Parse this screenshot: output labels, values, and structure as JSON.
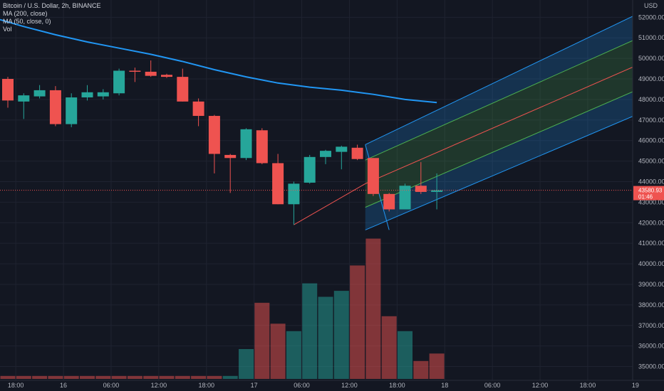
{
  "legend": {
    "symbol": "Bitcoin / U.S. Dollar, 2h, BINANCE",
    "ma200": "MA (200, close)",
    "ma50": "MA (50, close, 0)",
    "vol": "Vol"
  },
  "colors": {
    "background": "#131722",
    "up": "#26a69a",
    "down": "#ef5350",
    "ma": "#2196f3",
    "grid": "#1f2330",
    "axis_text": "#b2b5be",
    "channel_outer": "#2196f3",
    "channel_inner": "#4caf50",
    "channel_mid": "#ef5350",
    "price_line": "#ef5350"
  },
  "chart_data": {
    "type": "candlestick",
    "title": "Bitcoin / U.S. Dollar, 2h, BINANCE",
    "currency_label": "USD",
    "y_ticks": [
      35000,
      36000,
      37000,
      38000,
      39000,
      40000,
      41000,
      42000,
      43000,
      44000,
      45000,
      46000,
      47000,
      48000,
      49000,
      50000,
      51000,
      52000
    ],
    "y_tick_labels": [
      "35000.00",
      "36000.00",
      "37000.00",
      "38000.00",
      "39000.00",
      "40000.00",
      "41000.00",
      "42000.00",
      "43000.00",
      "44000.00",
      "45000.00",
      "46000.00",
      "47000.00",
      "48000.00",
      "49000.00",
      "50000.00",
      "51000.00",
      "52000.00"
    ],
    "ylim": [
      34500,
      52600
    ],
    "x_tick_labels": [
      "18:00",
      "16",
      "06:00",
      "12:00",
      "18:00",
      "17",
      "06:00",
      "12:00",
      "18:00",
      "18",
      "06:00",
      "12:00",
      "18:00",
      "19"
    ],
    "x_tick_index": [
      0.5,
      3.5,
      6.5,
      9.5,
      12.5,
      15.5,
      18.5,
      21.5,
      24.5,
      27.5,
      30.5,
      33.5,
      36.5,
      39.5
    ],
    "current_price": 43580.93,
    "current_price_label": "43580.93",
    "countdown_label": "01:46",
    "candles": [
      {
        "o": 49000,
        "h": 49100,
        "l": 47600,
        "c": 47950
      },
      {
        "o": 47900,
        "h": 48300,
        "l": 47050,
        "c": 48200
      },
      {
        "o": 48150,
        "h": 48700,
        "l": 48050,
        "c": 48450
      },
      {
        "o": 48450,
        "h": 48650,
        "l": 46700,
        "c": 46800
      },
      {
        "o": 46800,
        "h": 48300,
        "l": 46650,
        "c": 48100
      },
      {
        "o": 48100,
        "h": 48700,
        "l": 47950,
        "c": 48350
      },
      {
        "o": 48150,
        "h": 48500,
        "l": 48000,
        "c": 48350
      },
      {
        "o": 48300,
        "h": 49500,
        "l": 48200,
        "c": 49400
      },
      {
        "o": 49400,
        "h": 49550,
        "l": 48850,
        "c": 49350
      },
      {
        "o": 49350,
        "h": 49900,
        "l": 49100,
        "c": 49150
      },
      {
        "o": 49200,
        "h": 49250,
        "l": 49050,
        "c": 49100
      },
      {
        "o": 49100,
        "h": 49500,
        "l": 47900,
        "c": 47900
      },
      {
        "o": 47900,
        "h": 48050,
        "l": 46700,
        "c": 47200
      },
      {
        "o": 47200,
        "h": 47250,
        "l": 44400,
        "c": 45350
      },
      {
        "o": 45300,
        "h": 45350,
        "l": 43450,
        "c": 45150
      },
      {
        "o": 45150,
        "h": 46600,
        "l": 45050,
        "c": 46550
      },
      {
        "o": 46500,
        "h": 46600,
        "l": 44850,
        "c": 44900
      },
      {
        "o": 44900,
        "h": 45350,
        "l": 42900,
        "c": 42900
      },
      {
        "o": 42900,
        "h": 44000,
        "l": 41900,
        "c": 43900
      },
      {
        "o": 43950,
        "h": 45300,
        "l": 43900,
        "c": 45200
      },
      {
        "o": 45200,
        "h": 45550,
        "l": 44850,
        "c": 45500
      },
      {
        "o": 45450,
        "h": 45750,
        "l": 44600,
        "c": 45700
      },
      {
        "o": 45650,
        "h": 45800,
        "l": 45050,
        "c": 45100
      },
      {
        "o": 45150,
        "h": 45150,
        "l": 43300,
        "c": 43400
      },
      {
        "o": 43400,
        "h": 43450,
        "l": 42550,
        "c": 42650
      },
      {
        "o": 42650,
        "h": 43900,
        "l": 42650,
        "c": 43800
      },
      {
        "o": 43800,
        "h": 44950,
        "l": 43400,
        "c": 43500
      },
      {
        "o": 43500,
        "h": 44400,
        "l": 42650,
        "c": 43580.93
      }
    ],
    "volume_scale_max": 33,
    "volumes": [
      1,
      1,
      1,
      1,
      1,
      1,
      1,
      1,
      1,
      1,
      1,
      1,
      1,
      1,
      1,
      10,
      25.5,
      18.5,
      16,
      32,
      27.5,
      29.5,
      38,
      47,
      21,
      16,
      6,
      8.5
    ],
    "volume_colors": [
      "down",
      "down",
      "down",
      "down",
      "down",
      "down",
      "down",
      "down",
      "down",
      "down",
      "down",
      "down",
      "down",
      "down",
      "up",
      "up",
      "down",
      "down",
      "up",
      "up",
      "up",
      "up",
      "down",
      "down",
      "down",
      "up",
      "down",
      "down"
    ],
    "ma200": [
      {
        "i": -1,
        "v": 52000
      },
      {
        "i": 1,
        "v": 51550
      },
      {
        "i": 3,
        "v": 51150
      },
      {
        "i": 5,
        "v": 50800
      },
      {
        "i": 7,
        "v": 50500
      },
      {
        "i": 9,
        "v": 50200
      },
      {
        "i": 11,
        "v": 49850
      },
      {
        "i": 13,
        "v": 49450
      },
      {
        "i": 15,
        "v": 49100
      },
      {
        "i": 17,
        "v": 48800
      },
      {
        "i": 19,
        "v": 48600
      },
      {
        "i": 21,
        "v": 48450
      },
      {
        "i": 23,
        "v": 48250
      },
      {
        "i": 25,
        "v": 48000
      },
      {
        "i": 27,
        "v": 47850
      }
    ],
    "regression_channel": {
      "start_index": 22.5,
      "end_index": 40,
      "outer_top": [
        45800,
        52300
      ],
      "inner_top": [
        45050,
        51100
      ],
      "mid": [
        43900,
        49800
      ],
      "inner_bottom": [
        42750,
        48600
      ],
      "outer_bottom": [
        41650,
        47400
      ],
      "base_line": {
        "from": [
          18,
          41900
        ],
        "to": [
          22.5,
          43900
        ]
      },
      "drop_line": {
        "from": [
          22.5,
          45800
        ],
        "to": [
          24,
          41650
        ]
      }
    }
  }
}
